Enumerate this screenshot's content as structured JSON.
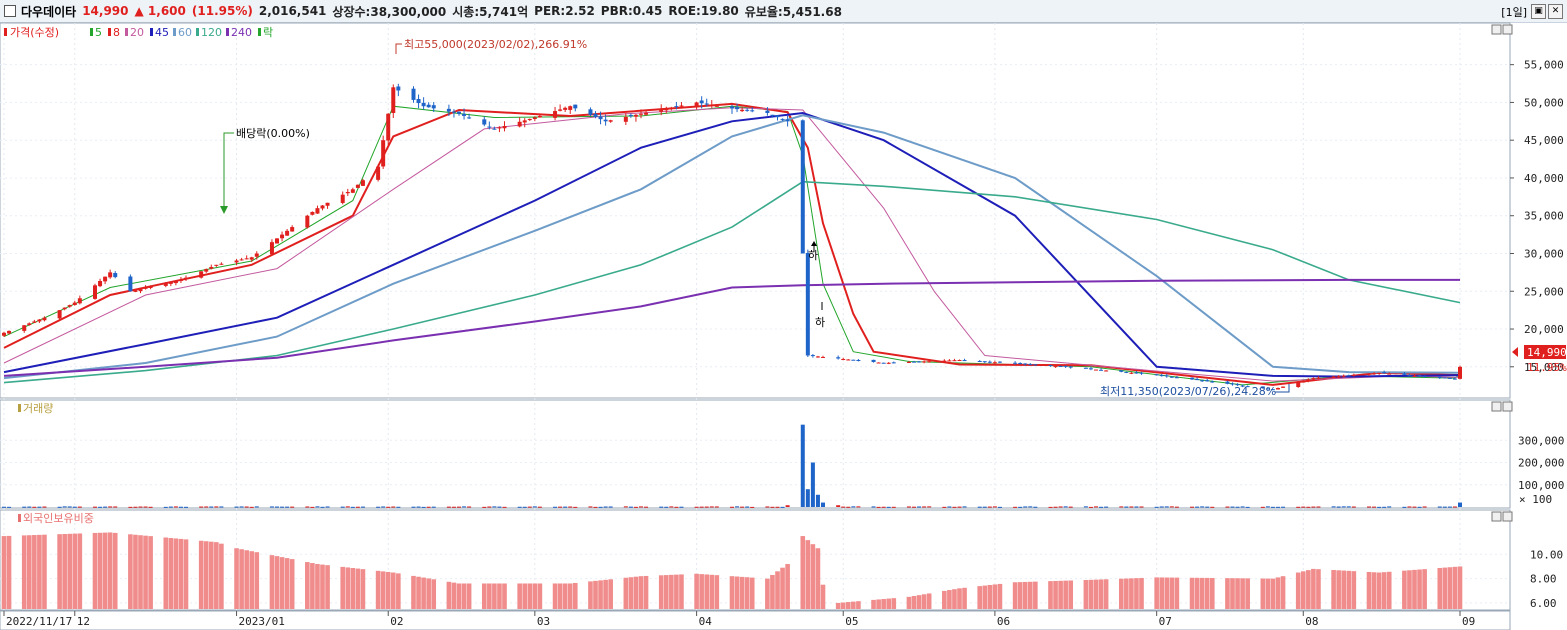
{
  "header": {
    "name": "다우데이타",
    "price": "14,990",
    "change": "▲ 1,600",
    "change_pct": "(11.95%)",
    "volume": "2,016,541",
    "listed": "상장수:38,300,000",
    "mcap": "시총:5,741억",
    "per": "PER:2.52",
    "pbr": "PBR:0.45",
    "roe": "ROE:19.80",
    "float": "유보율:5,451.68",
    "period": "[1일]",
    "btn_restore": "▣",
    "btn_close": "✕"
  },
  "legend": {
    "price": "가격(수정)",
    "ma": [
      {
        "label": "5",
        "color": "#22a52a"
      },
      {
        "label": "8",
        "color": "#e0201e"
      },
      {
        "label": "20",
        "color": "#c45a9e"
      },
      {
        "label": "45",
        "color": "#1e1eb8"
      },
      {
        "label": "60",
        "color": "#6e9cc8"
      },
      {
        "label": "120",
        "color": "#3aaa8c"
      },
      {
        "label": "240",
        "color": "#7a30b0"
      }
    ],
    "ex": "락",
    "volume": "거래량",
    "foreign": "외국인보유비중"
  },
  "annotations": {
    "high": "최고55,000(2023/02/02),266.91%",
    "low": "최저11,350(2023/07/26),24.28%",
    "dividend": "배당락(0.00%)",
    "limit_down_1": "하",
    "limit_down_2": "하",
    "price_tag": "14,990",
    "price_tag_pct": "11.95%",
    "vol_unit": "× 100"
  },
  "chart_data": [
    {
      "type": "candlestick",
      "title": "가격(수정)",
      "ylim": [
        11000,
        58000
      ],
      "yticks": [
        15000,
        20000,
        25000,
        30000,
        35000,
        40000,
        45000,
        50000,
        55000
      ],
      "ytick_labels": [
        "15,000",
        "20,000",
        "25,000",
        "30,000",
        "35,000",
        "40,000",
        "45,000",
        "50,000",
        "55,000"
      ],
      "x_labels": [
        "2022/11/17",
        "12",
        "2023/01",
        "02",
        "03",
        "04",
        "05",
        "06",
        "07",
        "08",
        "09"
      ],
      "x_label_dates": [
        "2022-11-17",
        "2022-12-01",
        "2023-01-02",
        "2023-02-01",
        "2023-03-02",
        "2023-04-03",
        "2023-05-02",
        "2023-06-01",
        "2023-07-03",
        "2023-08-01",
        "2023-09-01"
      ],
      "close_keypoints": [
        [
          "2022-11-17",
          19500
        ],
        [
          "2022-11-25",
          21500
        ],
        [
          "2022-12-01",
          23500
        ],
        [
          "2022-12-08",
          27500
        ],
        [
          "2022-12-12",
          25000
        ],
        [
          "2022-12-22",
          26500
        ],
        [
          "2022-12-29",
          28500
        ],
        [
          "2023-01-05",
          29500
        ],
        [
          "2023-01-12",
          33000
        ],
        [
          "2023-01-18",
          36000
        ],
        [
          "2023-01-25",
          38500
        ],
        [
          "2023-01-30",
          41500
        ],
        [
          "2023-02-02",
          52000
        ],
        [
          "2023-02-08",
          49500
        ],
        [
          "2023-02-15",
          48500
        ],
        [
          "2023-02-22",
          46500
        ],
        [
          "2023-03-02",
          48000
        ],
        [
          "2023-03-09",
          49500
        ],
        [
          "2023-03-16",
          47500
        ],
        [
          "2023-03-23",
          48500
        ],
        [
          "2023-04-03",
          50000
        ],
        [
          "2023-04-10",
          49200
        ],
        [
          "2023-04-17",
          48600
        ],
        [
          "2023-04-21",
          47500
        ],
        [
          "2023-04-24",
          30000
        ],
        [
          "2023-04-25",
          16500
        ],
        [
          "2023-04-28",
          16300
        ],
        [
          "2023-05-10",
          15500
        ],
        [
          "2023-05-25",
          15900
        ],
        [
          "2023-06-15",
          15000
        ],
        [
          "2023-07-03",
          13900
        ],
        [
          "2023-07-26",
          12000
        ],
        [
          "2023-08-03",
          13500
        ],
        [
          "2023-08-16",
          14200
        ],
        [
          "2023-08-31",
          13400
        ],
        [
          "2023-09-01",
          14990
        ]
      ],
      "moving_averages": [
        {
          "name": "5",
          "points": [
            [
              "2022-11-17",
              19000
            ],
            [
              "2022-12-08",
              25500
            ],
            [
              "2023-01-05",
              29000
            ],
            [
              "2023-01-25",
              37000
            ],
            [
              "2023-02-02",
              49500
            ],
            [
              "2023-02-22",
              48000
            ],
            [
              "2023-03-23",
              48200
            ],
            [
              "2023-04-10",
              49500
            ],
            [
              "2023-04-21",
              48800
            ],
            [
              "2023-04-24",
              43000
            ],
            [
              "2023-04-28",
              26000
            ],
            [
              "2023-05-04",
              17000
            ],
            [
              "2023-05-15",
              15700
            ],
            [
              "2023-06-20",
              15000
            ],
            [
              "2023-07-20",
              12600
            ],
            [
              "2023-08-10",
              13800
            ],
            [
              "2023-08-31",
              13500
            ],
            [
              "2023-09-01",
              14000
            ]
          ]
        },
        {
          "name": "8",
          "points": [
            [
              "2022-11-17",
              17500
            ],
            [
              "2022-12-08",
              24500
            ],
            [
              "2023-01-05",
              28500
            ],
            [
              "2023-01-25",
              35000
            ],
            [
              "2023-02-02",
              45500
            ],
            [
              "2023-02-15",
              49000
            ],
            [
              "2023-03-09",
              48200
            ],
            [
              "2023-04-10",
              49800
            ],
            [
              "2023-04-21",
              48700
            ],
            [
              "2023-04-25",
              44000
            ],
            [
              "2023-04-28",
              34000
            ],
            [
              "2023-05-04",
              22000
            ],
            [
              "2023-05-08",
              17000
            ],
            [
              "2023-05-25",
              15300
            ],
            [
              "2023-06-20",
              15200
            ],
            [
              "2023-07-26",
              12600
            ],
            [
              "2023-08-16",
              14200
            ],
            [
              "2023-09-01",
              13900
            ]
          ]
        },
        {
          "name": "20",
          "points": [
            [
              "2022-11-17",
              15500
            ],
            [
              "2022-12-15",
              24500
            ],
            [
              "2023-01-10",
              28000
            ],
            [
              "2023-02-02",
              38500
            ],
            [
              "2023-02-20",
              46500
            ],
            [
              "2023-03-20",
              48500
            ],
            [
              "2023-04-10",
              49300
            ],
            [
              "2023-04-24",
              49000
            ],
            [
              "2023-05-10",
              36000
            ],
            [
              "2023-05-20",
              25000
            ],
            [
              "2023-05-30",
              16500
            ],
            [
              "2023-06-20",
              15200
            ],
            [
              "2023-07-26",
              13100
            ],
            [
              "2023-08-20",
              13800
            ],
            [
              "2023-09-01",
              13600
            ]
          ]
        },
        {
          "name": "45",
          "points": [
            [
              "2022-11-17",
              14300
            ],
            [
              "2022-12-15",
              18000
            ],
            [
              "2023-01-10",
              21500
            ],
            [
              "2023-02-02",
              28500
            ],
            [
              "2023-03-02",
              37000
            ],
            [
              "2023-03-23",
              44000
            ],
            [
              "2023-04-10",
              47500
            ],
            [
              "2023-04-24",
              48600
            ],
            [
              "2023-05-10",
              45000
            ],
            [
              "2023-06-05",
              35000
            ],
            [
              "2023-07-03",
              15000
            ],
            [
              "2023-07-26",
              13800
            ],
            [
              "2023-08-10",
              13700
            ],
            [
              "2023-09-01",
              13900
            ]
          ]
        },
        {
          "name": "60",
          "points": [
            [
              "2022-11-17",
              13500
            ],
            [
              "2022-12-15",
              15500
            ],
            [
              "2023-01-10",
              19000
            ],
            [
              "2023-02-02",
              26000
            ],
            [
              "2023-03-02",
              33000
            ],
            [
              "2023-03-23",
              38500
            ],
            [
              "2023-04-10",
              45500
            ],
            [
              "2023-04-24",
              48300
            ],
            [
              "2023-05-10",
              46000
            ],
            [
              "2023-06-05",
              40000
            ],
            [
              "2023-07-03",
              27000
            ],
            [
              "2023-07-26",
              15000
            ],
            [
              "2023-08-10",
              14300
            ],
            [
              "2023-09-01",
              14200
            ]
          ]
        },
        {
          "name": "120",
          "points": [
            [
              "2022-11-17",
              12900
            ],
            [
              "2022-12-15",
              14500
            ],
            [
              "2023-01-10",
              16500
            ],
            [
              "2023-02-02",
              20000
            ],
            [
              "2023-03-02",
              24500
            ],
            [
              "2023-03-23",
              28500
            ],
            [
              "2023-04-10",
              33500
            ],
            [
              "2023-04-24",
              39500
            ],
            [
              "2023-05-10",
              38900
            ],
            [
              "2023-06-05",
              37500
            ],
            [
              "2023-07-03",
              34500
            ],
            [
              "2023-07-26",
              30500
            ],
            [
              "2023-08-10",
              26500
            ],
            [
              "2023-09-01",
              23500
            ]
          ]
        },
        {
          "name": "240",
          "points": [
            [
              "2022-11-17",
              13800
            ],
            [
              "2022-12-15",
              15000
            ],
            [
              "2023-01-10",
              16200
            ],
            [
              "2023-02-02",
              18500
            ],
            [
              "2023-03-02",
              21000
            ],
            [
              "2023-03-23",
              23000
            ],
            [
              "2023-04-10",
              25500
            ],
            [
              "2023-04-24",
              25800
            ],
            [
              "2023-05-10",
              26000
            ],
            [
              "2023-06-05",
              26200
            ],
            [
              "2023-07-03",
              26400
            ],
            [
              "2023-08-10",
              26500
            ],
            [
              "2023-09-01",
              26500
            ]
          ]
        }
      ]
    },
    {
      "type": "bar",
      "title": "거래량",
      "unit": "× 100",
      "ylim": [
        0,
        400000
      ],
      "yticks": [
        100000,
        200000,
        300000
      ],
      "ytick_labels": [
        "100,000",
        "200,000",
        "300,000"
      ],
      "baseline": 1000,
      "spikes": [
        [
          "2023-04-21",
          8000
        ],
        [
          "2023-04-24",
          370000
        ],
        [
          "2023-04-25",
          80000
        ],
        [
          "2023-04-26",
          200000
        ],
        [
          "2023-04-27",
          55000
        ],
        [
          "2023-04-28",
          20000
        ],
        [
          "2023-05-01",
          8000
        ],
        [
          "2023-09-01",
          20000
        ]
      ]
    },
    {
      "type": "bar",
      "title": "외국인보유비중",
      "ylim": [
        5.5,
        12.0
      ],
      "yticks": [
        6,
        8,
        10
      ],
      "ytick_labels": [
        "6.00",
        "8.00",
        "10.00"
      ],
      "points": [
        [
          "2022-11-17",
          11.5
        ],
        [
          "2022-12-08",
          11.8
        ],
        [
          "2022-12-29",
          11.0
        ],
        [
          "2023-01-02",
          10.5
        ],
        [
          "2023-01-18",
          9.2
        ],
        [
          "2023-02-02",
          8.5
        ],
        [
          "2023-02-15",
          7.6
        ],
        [
          "2023-03-09",
          7.6
        ],
        [
          "2023-03-23",
          8.2
        ],
        [
          "2023-04-03",
          8.4
        ],
        [
          "2023-04-17",
          8.0
        ],
        [
          "2023-04-21",
          9.2
        ],
        [
          "2023-04-24",
          11.5
        ],
        [
          "2023-04-27",
          10.5
        ],
        [
          "2023-04-28",
          7.5
        ],
        [
          "2023-05-01",
          6.0
        ],
        [
          "2023-05-15",
          6.5
        ],
        [
          "2023-05-25",
          7.2
        ],
        [
          "2023-06-05",
          7.7
        ],
        [
          "2023-06-20",
          7.9
        ],
        [
          "2023-07-03",
          8.1
        ],
        [
          "2023-07-26",
          8.0
        ],
        [
          "2023-08-03",
          8.8
        ],
        [
          "2023-08-16",
          8.5
        ],
        [
          "2023-09-01",
          9.0
        ]
      ]
    }
  ]
}
